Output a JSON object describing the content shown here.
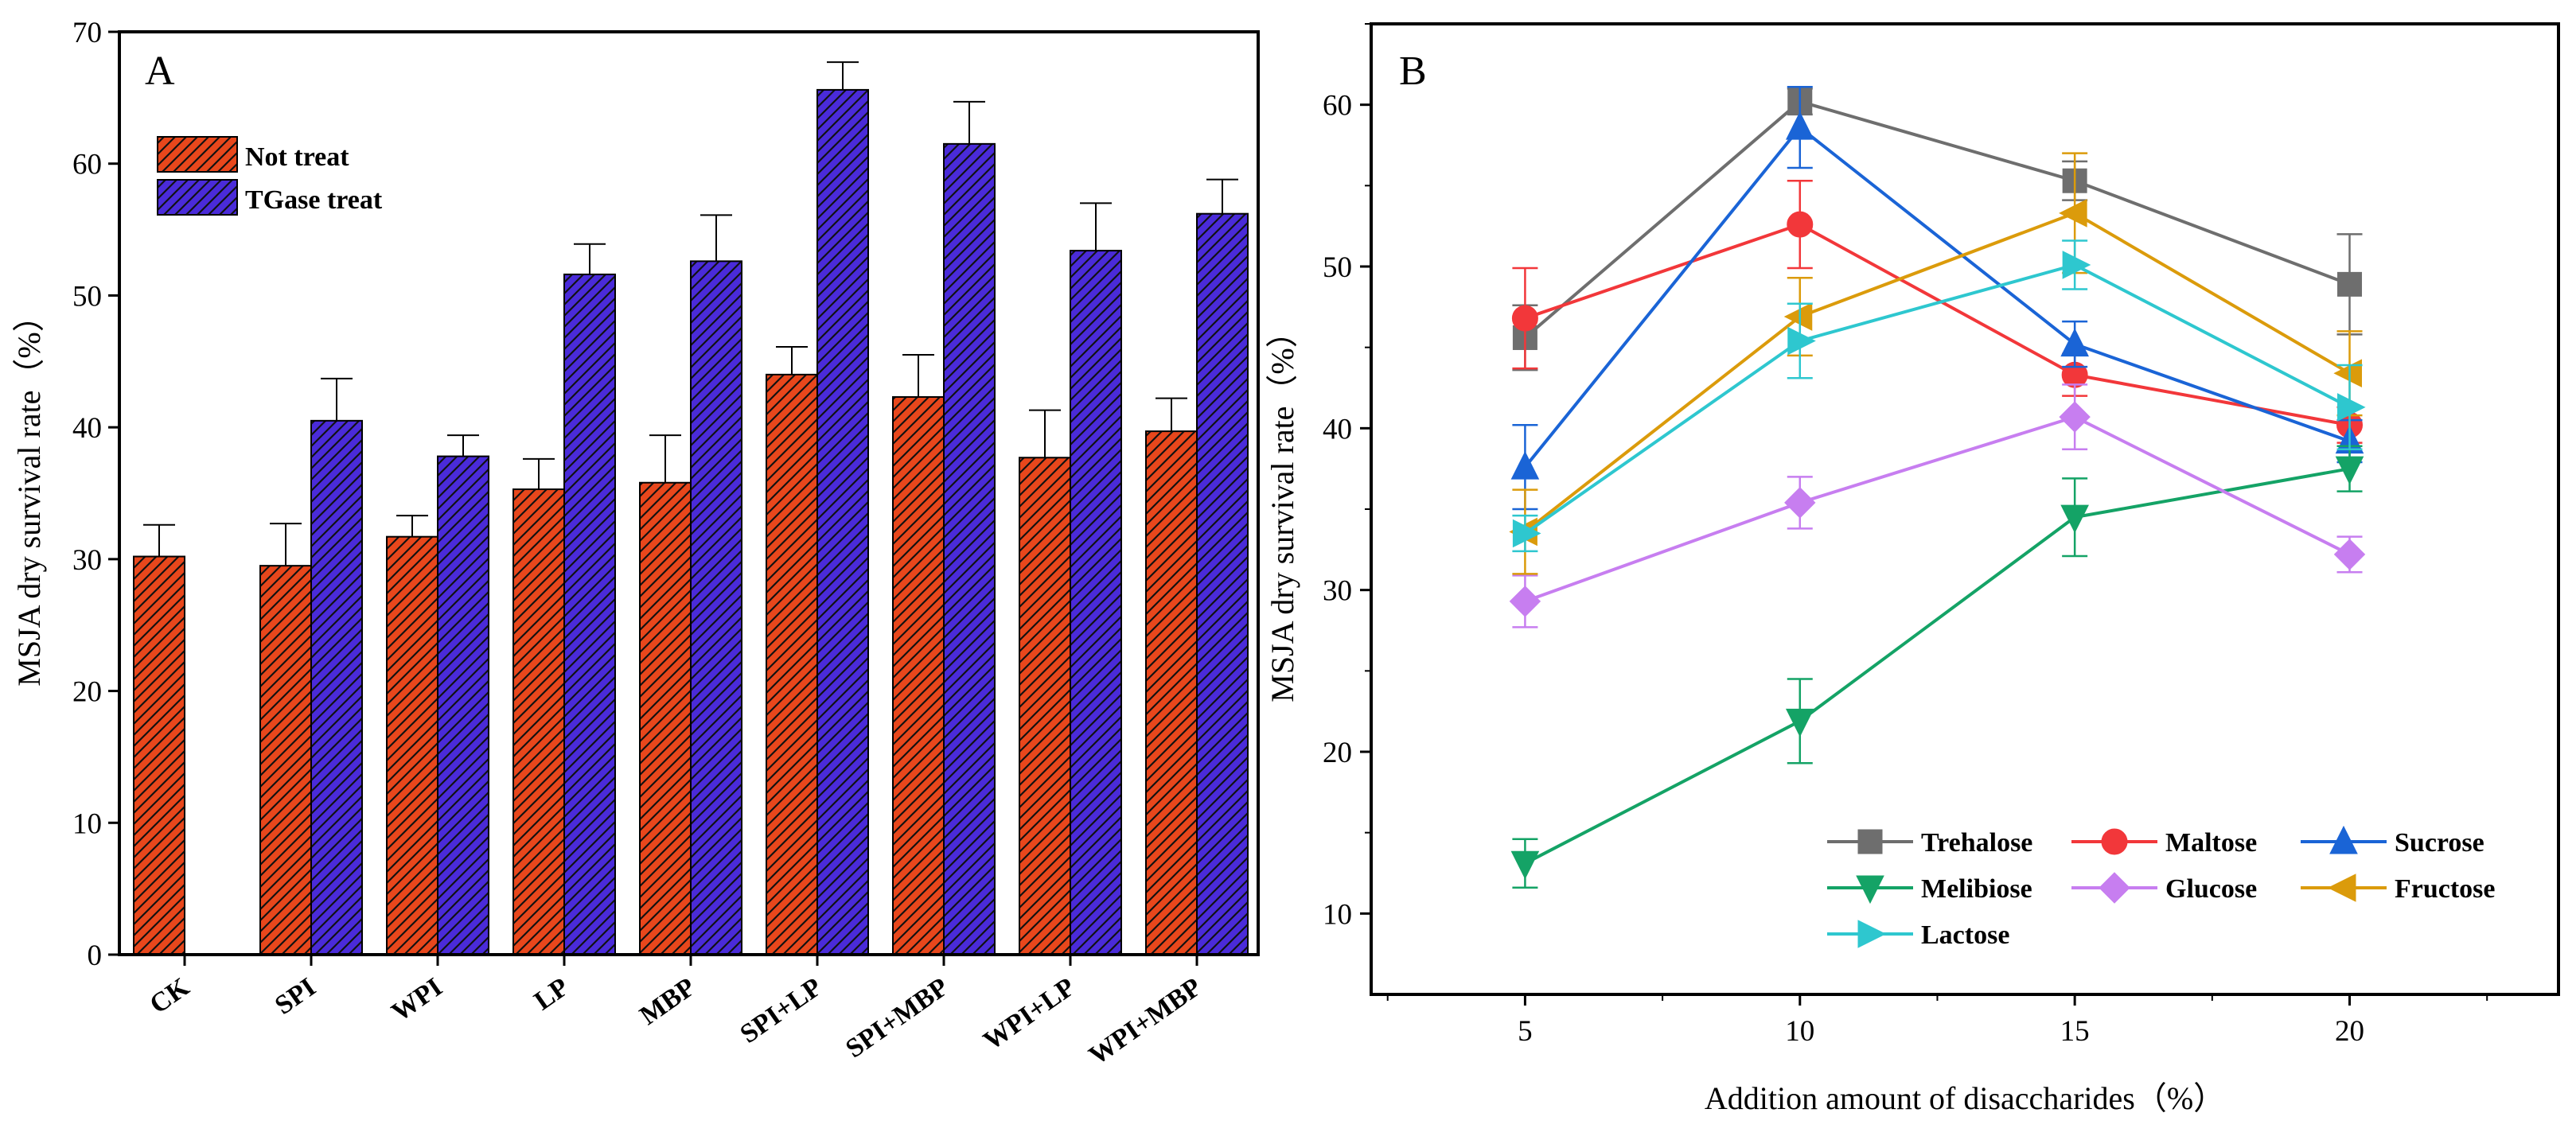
{
  "chart_data": [
    {
      "type": "bar",
      "panel_label": "A",
      "title": "",
      "xlabel": "",
      "ylabel": "MSJA dry survival rate（%）",
      "ylim": [
        0,
        70
      ],
      "yticks": [
        0,
        10,
        20,
        30,
        40,
        50,
        60,
        70
      ],
      "legend_position": "top-left",
      "categories": [
        "CK",
        "SPI",
        "WPI",
        "LP",
        "MBP",
        "SPI+LP",
        "SPI+MBP",
        "WPI+LP",
        "WPI+MBP"
      ],
      "series": [
        {
          "name": "Not treat",
          "color": "#e8471c",
          "values": [
            30.2,
            29.5,
            31.7,
            35.3,
            35.8,
            44.0,
            42.3,
            37.7,
            39.7
          ],
          "errors": [
            2.4,
            3.2,
            1.6,
            2.3,
            3.6,
            2.1,
            3.2,
            3.6,
            2.5
          ]
        },
        {
          "name": "TGase treat",
          "color": "#4a2bd9",
          "values": [
            null,
            40.5,
            37.8,
            51.6,
            52.6,
            65.6,
            61.5,
            53.4,
            56.2
          ],
          "errors": [
            null,
            3.2,
            1.6,
            2.3,
            3.5,
            2.1,
            3.2,
            3.6,
            2.6
          ]
        }
      ]
    },
    {
      "type": "line",
      "panel_label": "B",
      "title": "",
      "xlabel": "Addition amount of disaccharides（%）",
      "ylabel": "MSJA dry survival rate（%）",
      "xlim": [
        2.2,
        23.8
      ],
      "ylim": [
        5,
        65
      ],
      "x": [
        5,
        10,
        15,
        20
      ],
      "xticks": [
        5,
        10,
        15,
        20
      ],
      "yticks": [
        10,
        20,
        30,
        40,
        50,
        60
      ],
      "legend_position": "bottom-right",
      "series": [
        {
          "name": "Trehalose",
          "marker": "square",
          "color": "#6e6e6e",
          "values": [
            45.6,
            60.2,
            55.3,
            48.9
          ],
          "errors": [
            2.0,
            0.8,
            1.2,
            3.1
          ]
        },
        {
          "name": "Maltose",
          "marker": "circle",
          "color": "#f2373a",
          "values": [
            46.8,
            52.6,
            43.3,
            40.2
          ],
          "errors": [
            3.1,
            2.7,
            1.3,
            1.1
          ]
        },
        {
          "name": "Sucrose",
          "marker": "triangle-up",
          "color": "#1a64d6",
          "values": [
            37.6,
            58.6,
            45.2,
            39.2
          ],
          "errors": [
            2.6,
            2.5,
            1.4,
            1.3
          ]
        },
        {
          "name": "Melibiose",
          "marker": "triangle-down",
          "color": "#14a366",
          "values": [
            13.1,
            21.9,
            34.5,
            37.5
          ],
          "errors": [
            1.5,
            2.6,
            2.4,
            1.4
          ]
        },
        {
          "name": "Glucose",
          "marker": "diamond",
          "color": "#c77ef0",
          "values": [
            29.3,
            35.4,
            40.7,
            32.2
          ],
          "errors": [
            1.6,
            1.6,
            2.0,
            1.1
          ]
        },
        {
          "name": "Fructose",
          "marker": "triangle-left",
          "color": "#db9b0b",
          "values": [
            33.6,
            46.9,
            53.3,
            43.4
          ],
          "errors": [
            2.6,
            2.4,
            3.7,
            2.6
          ]
        },
        {
          "name": "Lactose",
          "marker": "triangle-right",
          "color": "#2ec7cf",
          "values": [
            33.5,
            45.4,
            50.1,
            41.3
          ],
          "errors": [
            1.1,
            2.3,
            1.5,
            2.6
          ]
        }
      ]
    }
  ]
}
